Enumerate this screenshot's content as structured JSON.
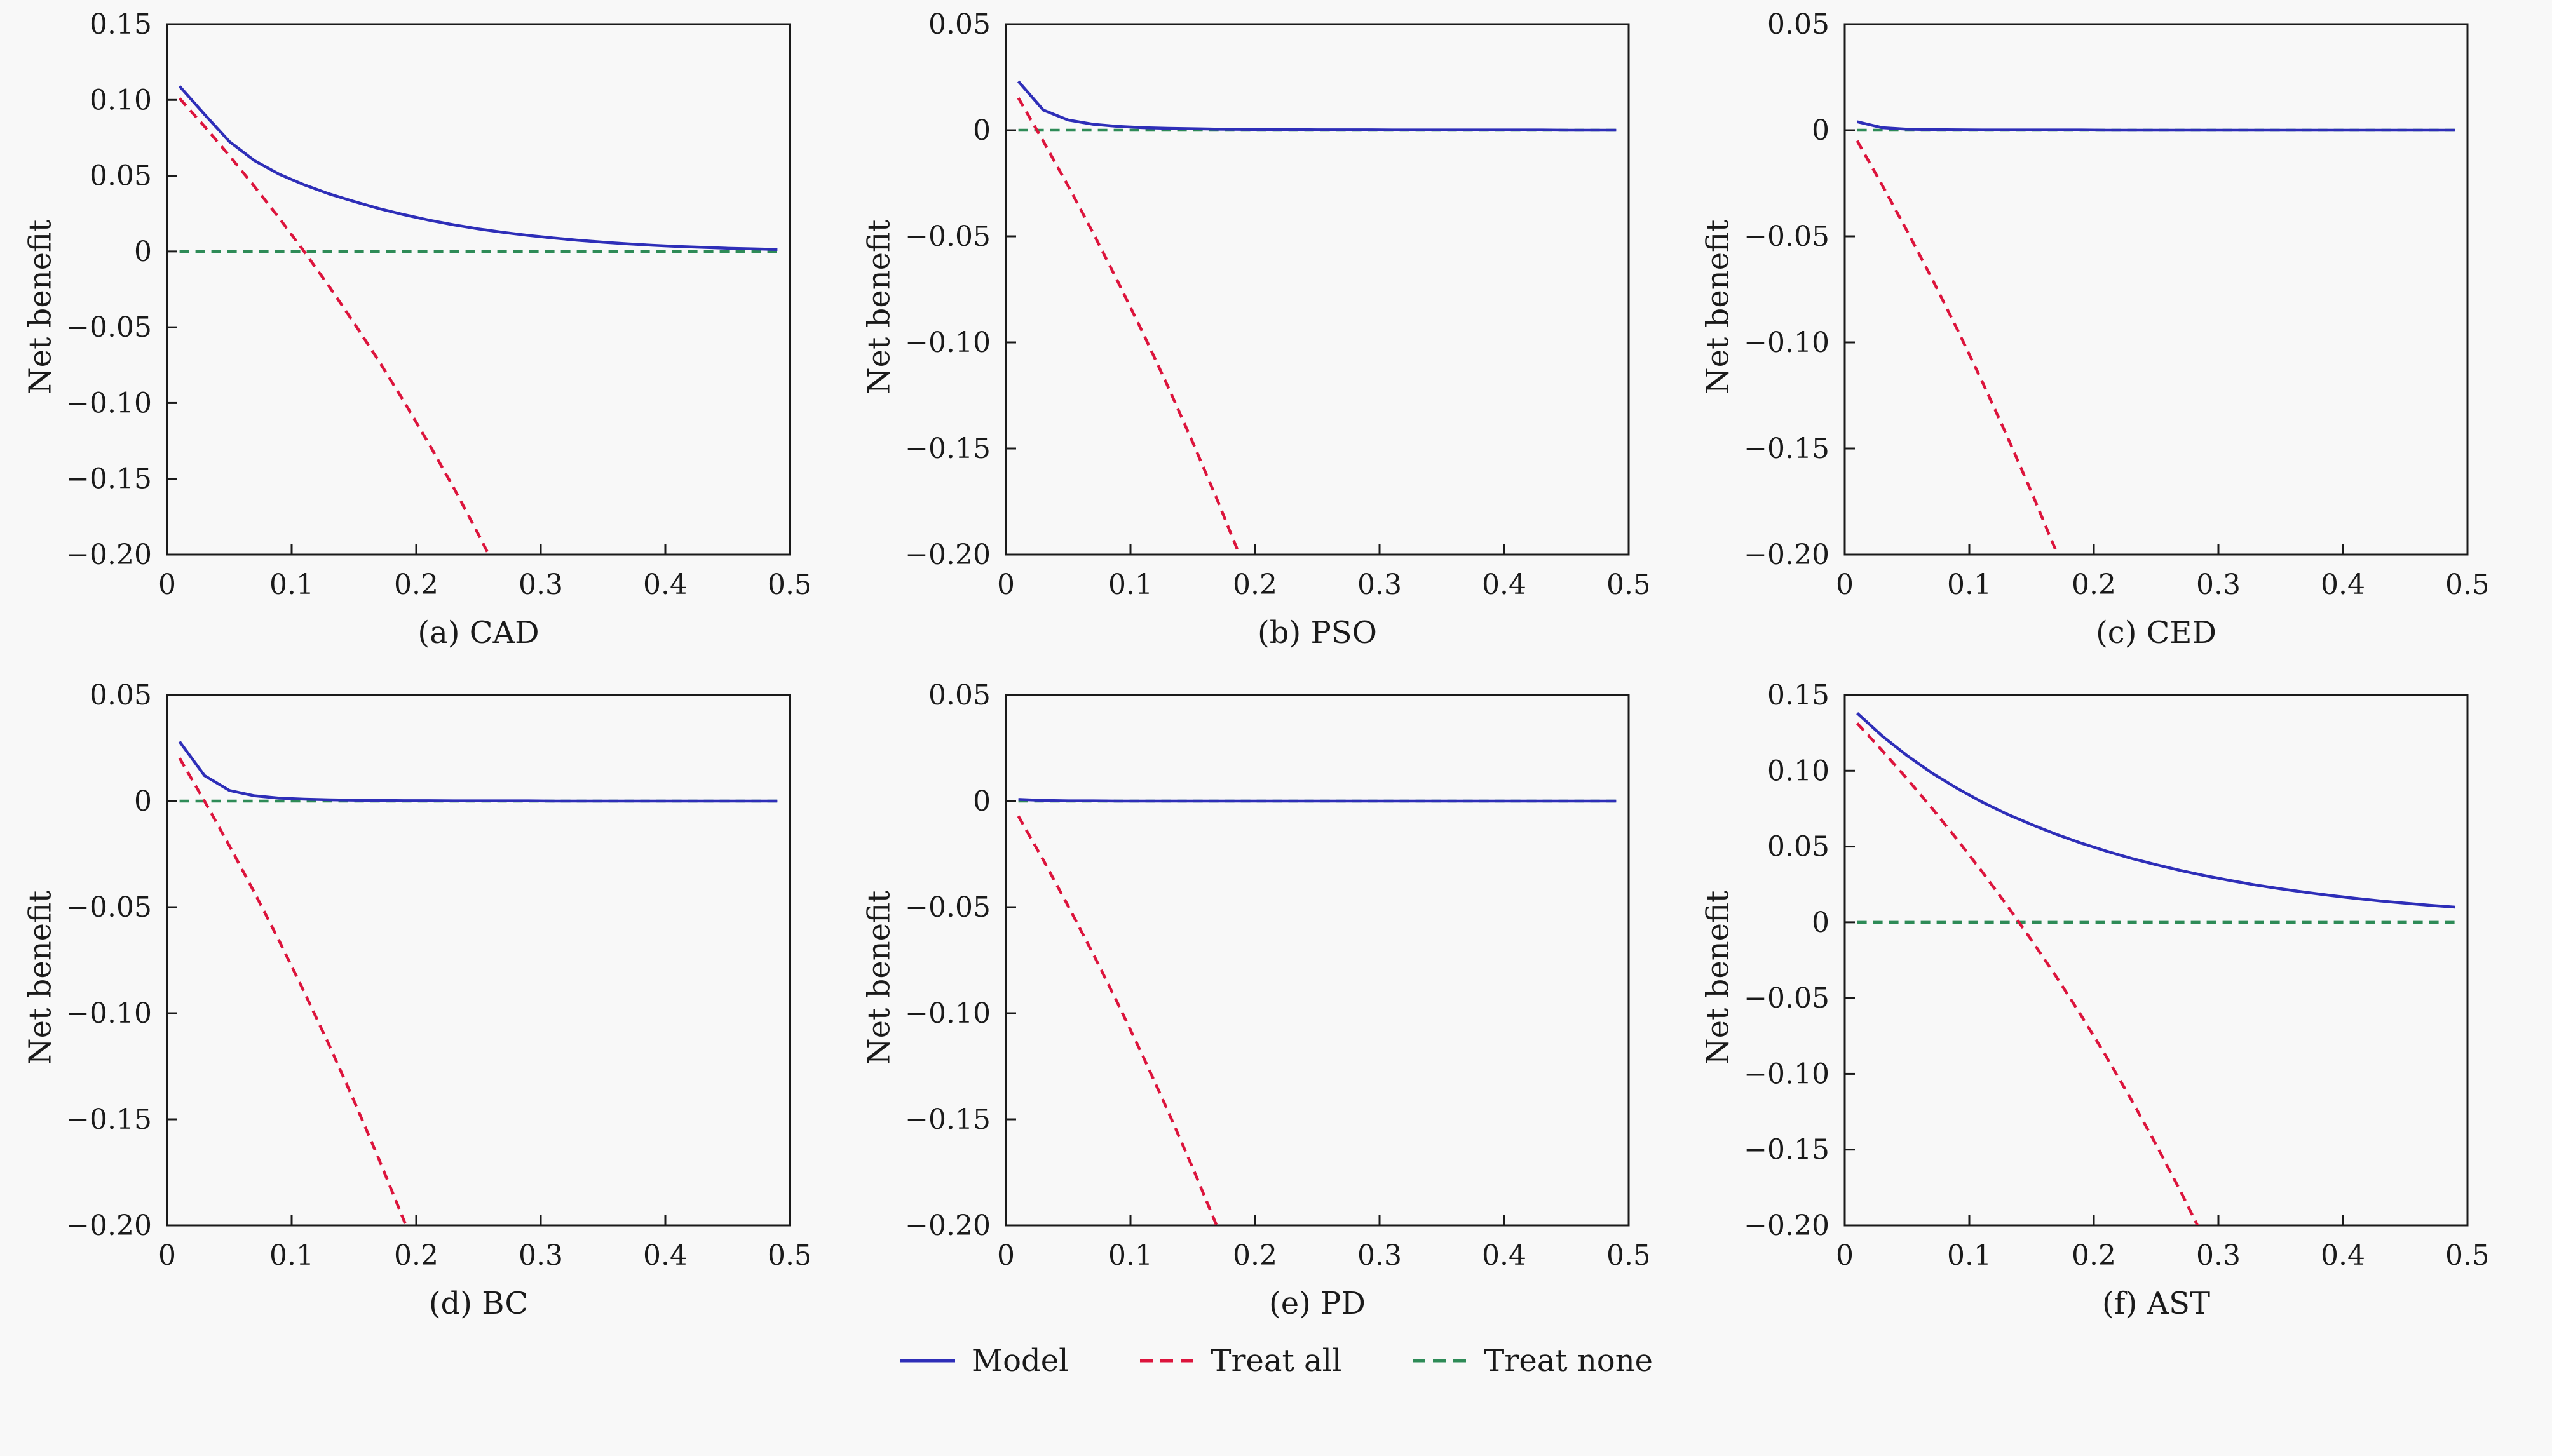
{
  "legend": {
    "items": [
      {
        "label": "Model",
        "color": "#2e2eb8",
        "dash": "solid"
      },
      {
        "label": "Treat all",
        "color": "#dc143c",
        "dash": "dashed"
      },
      {
        "label": "Treat none",
        "color": "#2e8b57",
        "dash": "dashed"
      }
    ]
  },
  "chart_data": [
    {
      "id": "a",
      "type": "line",
      "caption": "(a) CAD",
      "ylabel": "Net benefit",
      "xlim": [
        0,
        0.5
      ],
      "ylim": [
        -0.2,
        0.15
      ],
      "xticks": {
        "values": [
          0,
          0.1,
          0.2,
          0.3,
          0.4,
          0.5
        ],
        "labels": [
          "0",
          "0.1",
          "0.2",
          "0.3",
          "0.4",
          "0.5"
        ]
      },
      "yticks": {
        "values": [
          0.15,
          0.1,
          0.05,
          0,
          -0.05,
          -0.1,
          -0.15,
          -0.2
        ],
        "labels": [
          "0.15",
          "0.10",
          "0.05",
          "0",
          "−0.05",
          "−0.10",
          "−0.15",
          "−0.20"
        ]
      },
      "x": [
        0.01,
        0.03,
        0.05,
        0.07,
        0.09,
        0.11,
        0.13,
        0.15,
        0.17,
        0.19,
        0.21,
        0.23,
        0.25,
        0.27,
        0.29,
        0.31,
        0.33,
        0.35,
        0.37,
        0.39,
        0.41,
        0.43,
        0.45,
        0.47,
        0.49
      ],
      "series": [
        {
          "name": "Model",
          "values": [
            0.109,
            0.0905,
            0.0725,
            0.06,
            0.051,
            0.044,
            0.038,
            0.033,
            0.0283,
            0.0243,
            0.0207,
            0.0176,
            0.0149,
            0.0126,
            0.0106,
            0.0089,
            0.0074,
            0.0061,
            0.005,
            0.0041,
            0.0033,
            0.0027,
            0.0021,
            0.0017,
            0.0013
          ]
        },
        {
          "name": "Treat all",
          "values": [
            0.101,
            0.0825,
            0.0632,
            0.043,
            0.022,
            0.0,
            -0.023,
            -0.0471,
            -0.0723,
            -0.0988,
            -0.1266,
            -0.1558,
            -0.1867,
            -0.2192,
            null,
            null,
            null,
            null,
            null,
            null,
            null,
            null,
            null,
            null,
            null
          ]
        },
        {
          "name": "Treat none",
          "constant": 0
        }
      ]
    },
    {
      "id": "b",
      "type": "line",
      "caption": "(b) PSO",
      "ylabel": "Net benefit",
      "xlim": [
        0,
        0.5
      ],
      "ylim": [
        -0.2,
        0.05
      ],
      "xticks": {
        "values": [
          0,
          0.1,
          0.2,
          0.3,
          0.4,
          0.5
        ],
        "labels": [
          "0",
          "0.1",
          "0.2",
          "0.3",
          "0.4",
          "0.5"
        ]
      },
      "yticks": {
        "values": [
          0.05,
          0,
          -0.05,
          -0.1,
          -0.15,
          -0.2
        ],
        "labels": [
          "0.05",
          "0",
          "−0.05",
          "−0.10",
          "−0.15",
          "−0.20"
        ]
      },
      "x": [
        0.01,
        0.03,
        0.05,
        0.07,
        0.09,
        0.11,
        0.13,
        0.15,
        0.17,
        0.19,
        0.21,
        0.23,
        0.25,
        0.27,
        0.29,
        0.31,
        0.33,
        0.35,
        0.37,
        0.39,
        0.41,
        0.43,
        0.45,
        0.47,
        0.49
      ],
      "series": [
        {
          "name": "Model",
          "values": [
            0.023,
            0.0095,
            0.0048,
            0.0028,
            0.0018,
            0.0012,
            0.0009,
            0.0007,
            0.0005,
            0.0004,
            0.0003,
            0.0003,
            0.0002,
            0.0002,
            0.0002,
            0.0001,
            0.0001,
            0.0001,
            0.0001,
            0.0001,
            0.0001,
            0.0001,
            0.0,
            0.0,
            0.0
          ]
        },
        {
          "name": "Treat all",
          "values": [
            0.0152,
            -0.0052,
            -0.0263,
            -0.0484,
            -0.0715,
            -0.0955,
            -0.1207,
            -0.1471,
            -0.1747,
            -0.2037,
            null,
            null,
            null,
            null,
            null,
            null,
            null,
            null,
            null,
            null,
            null,
            null,
            null,
            null,
            null
          ]
        },
        {
          "name": "Treat none",
          "constant": 0
        }
      ]
    },
    {
      "id": "c",
      "type": "line",
      "caption": "(c) CED",
      "ylabel": "Net benefit",
      "xlim": [
        0,
        0.5
      ],
      "ylim": [
        -0.2,
        0.05
      ],
      "xticks": {
        "values": [
          0,
          0.1,
          0.2,
          0.3,
          0.4,
          0.5
        ],
        "labels": [
          "0",
          "0.1",
          "0.2",
          "0.3",
          "0.4",
          "0.5"
        ]
      },
      "yticks": {
        "values": [
          0.05,
          0,
          -0.05,
          -0.1,
          -0.15,
          -0.2
        ],
        "labels": [
          "0.05",
          "0",
          "−0.05",
          "−0.10",
          "−0.15",
          "−0.20"
        ]
      },
      "x": [
        0.01,
        0.03,
        0.05,
        0.07,
        0.09,
        0.11,
        0.13,
        0.15,
        0.17,
        0.19,
        0.21,
        0.23,
        0.25,
        0.27,
        0.29,
        0.31,
        0.33,
        0.35,
        0.37,
        0.39,
        0.41,
        0.43,
        0.45,
        0.47,
        0.49
      ],
      "series": [
        {
          "name": "Model",
          "values": [
            0.004,
            0.0012,
            0.0005,
            0.0003,
            0.0002,
            0.0001,
            0.0001,
            0.0001,
            0.0001,
            0.0001,
            0.0,
            0.0,
            0.0,
            0.0,
            0.0,
            0.0,
            0.0,
            0.0,
            0.0,
            0.0,
            0.0,
            0.0,
            0.0,
            0.0,
            0.0
          ]
        },
        {
          "name": "Treat all",
          "values": [
            -0.005,
            -0.0258,
            -0.0474,
            -0.0699,
            -0.0934,
            -0.118,
            -0.1437,
            -0.1706,
            -0.1988,
            -0.2283,
            null,
            null,
            null,
            null,
            null,
            null,
            null,
            null,
            null,
            null,
            null,
            null,
            null,
            null,
            null
          ]
        },
        {
          "name": "Treat none",
          "constant": 0
        }
      ]
    },
    {
      "id": "d",
      "type": "line",
      "caption": "(d) BC",
      "ylabel": "Net benefit",
      "xlim": [
        0,
        0.5
      ],
      "ylim": [
        -0.2,
        0.05
      ],
      "xticks": {
        "values": [
          0,
          0.1,
          0.2,
          0.3,
          0.4,
          0.5
        ],
        "labels": [
          "0",
          "0.1",
          "0.2",
          "0.3",
          "0.4",
          "0.5"
        ]
      },
      "yticks": {
        "values": [
          0.05,
          0,
          -0.05,
          -0.1,
          -0.15,
          -0.2
        ],
        "labels": [
          "0.05",
          "0",
          "−0.05",
          "−0.10",
          "−0.15",
          "−0.20"
        ]
      },
      "x": [
        0.01,
        0.03,
        0.05,
        0.07,
        0.09,
        0.11,
        0.13,
        0.15,
        0.17,
        0.19,
        0.21,
        0.23,
        0.25,
        0.27,
        0.29,
        0.31,
        0.33,
        0.35,
        0.37,
        0.39,
        0.41,
        0.43,
        0.45,
        0.47,
        0.49
      ],
      "series": [
        {
          "name": "Model",
          "values": [
            0.028,
            0.012,
            0.005,
            0.0025,
            0.0014,
            0.0009,
            0.0006,
            0.0004,
            0.0003,
            0.0002,
            0.0002,
            0.0001,
            0.0001,
            0.0001,
            0.0001,
            0.0,
            0.0,
            0.0,
            0.0,
            0.0,
            0.0,
            0.0,
            0.0,
            0.0,
            0.0
          ]
        },
        {
          "name": "Treat all",
          "values": [
            0.0202,
            0.0,
            -0.0211,
            -0.043,
            -0.0659,
            -0.0899,
            -0.1149,
            -0.1412,
            -0.1687,
            -0.1975,
            -0.2278,
            null,
            null,
            null,
            null,
            null,
            null,
            null,
            null,
            null,
            null,
            null,
            null,
            null,
            null
          ]
        },
        {
          "name": "Treat none",
          "constant": 0
        }
      ]
    },
    {
      "id": "e",
      "type": "line",
      "caption": "(e) PD",
      "ylabel": "Net benefit",
      "xlim": [
        0,
        0.5
      ],
      "ylim": [
        -0.2,
        0.05
      ],
      "xticks": {
        "values": [
          0,
          0.1,
          0.2,
          0.3,
          0.4,
          0.5
        ],
        "labels": [
          "0",
          "0.1",
          "0.2",
          "0.3",
          "0.4",
          "0.5"
        ]
      },
      "yticks": {
        "values": [
          0.05,
          0,
          -0.05,
          -0.1,
          -0.15,
          -0.2
        ],
        "labels": [
          "0.05",
          "0",
          "−0.05",
          "−0.10",
          "−0.15",
          "−0.20"
        ]
      },
      "x": [
        0.01,
        0.03,
        0.05,
        0.07,
        0.09,
        0.11,
        0.13,
        0.15,
        0.17,
        0.19,
        0.21,
        0.23,
        0.25,
        0.27,
        0.29,
        0.31,
        0.33,
        0.35,
        0.37,
        0.39,
        0.41,
        0.43,
        0.45,
        0.47,
        0.49
      ],
      "series": [
        {
          "name": "Model",
          "values": [
            0.0008,
            0.0003,
            0.0001,
            0.0001,
            0.0,
            0.0,
            0.0,
            0.0,
            0.0,
            0.0,
            0.0,
            0.0,
            0.0,
            0.0,
            0.0,
            0.0,
            0.0,
            0.0,
            0.0,
            0.0,
            0.0,
            0.0,
            0.0,
            0.0,
            0.0
          ]
        },
        {
          "name": "Treat all",
          "values": [
            -0.0071,
            -0.0278,
            -0.0495,
            -0.072,
            -0.0956,
            -0.1202,
            -0.146,
            -0.1729,
            -0.2012,
            null,
            null,
            null,
            null,
            null,
            null,
            null,
            null,
            null,
            null,
            null,
            null,
            null,
            null,
            null,
            null
          ]
        },
        {
          "name": "Treat none",
          "constant": 0
        }
      ]
    },
    {
      "id": "f",
      "type": "line",
      "caption": "(f) AST",
      "ylabel": "Net benefit",
      "xlim": [
        0,
        0.5
      ],
      "ylim": [
        -0.2,
        0.15
      ],
      "xticks": {
        "values": [
          0,
          0.1,
          0.2,
          0.3,
          0.4,
          0.5
        ],
        "labels": [
          "0",
          "0.1",
          "0.2",
          "0.3",
          "0.4",
          "0.5"
        ]
      },
      "yticks": {
        "values": [
          0.15,
          0.1,
          0.05,
          0,
          -0.05,
          -0.1,
          -0.15,
          -0.2
        ],
        "labels": [
          "0.15",
          "0.10",
          "0.05",
          "0",
          "−0.05",
          "−0.10",
          "−0.15",
          "−0.20"
        ]
      },
      "x": [
        0.01,
        0.03,
        0.05,
        0.07,
        0.09,
        0.11,
        0.13,
        0.15,
        0.17,
        0.19,
        0.21,
        0.23,
        0.25,
        0.27,
        0.29,
        0.31,
        0.33,
        0.35,
        0.37,
        0.39,
        0.41,
        0.43,
        0.45,
        0.47,
        0.49
      ],
      "series": [
        {
          "name": "Model",
          "values": [
            0.138,
            0.123,
            0.11,
            0.0985,
            0.0885,
            0.0795,
            0.0715,
            0.0645,
            0.058,
            0.0522,
            0.047,
            0.0422,
            0.038,
            0.0341,
            0.0306,
            0.0275,
            0.0246,
            0.0221,
            0.0198,
            0.0177,
            0.0158,
            0.0141,
            0.0126,
            0.0112,
            0.01
          ]
        },
        {
          "name": "Treat all",
          "values": [
            0.1313,
            0.1134,
            0.0947,
            0.0753,
            0.0549,
            0.0337,
            0.0115,
            -0.0118,
            -0.0361,
            -0.0617,
            -0.0886,
            -0.1169,
            -0.1467,
            -0.1781,
            -0.2113,
            null,
            null,
            null,
            null,
            null,
            null,
            null,
            null,
            null,
            null
          ]
        },
        {
          "name": "Treat none",
          "constant": 0
        }
      ]
    }
  ]
}
